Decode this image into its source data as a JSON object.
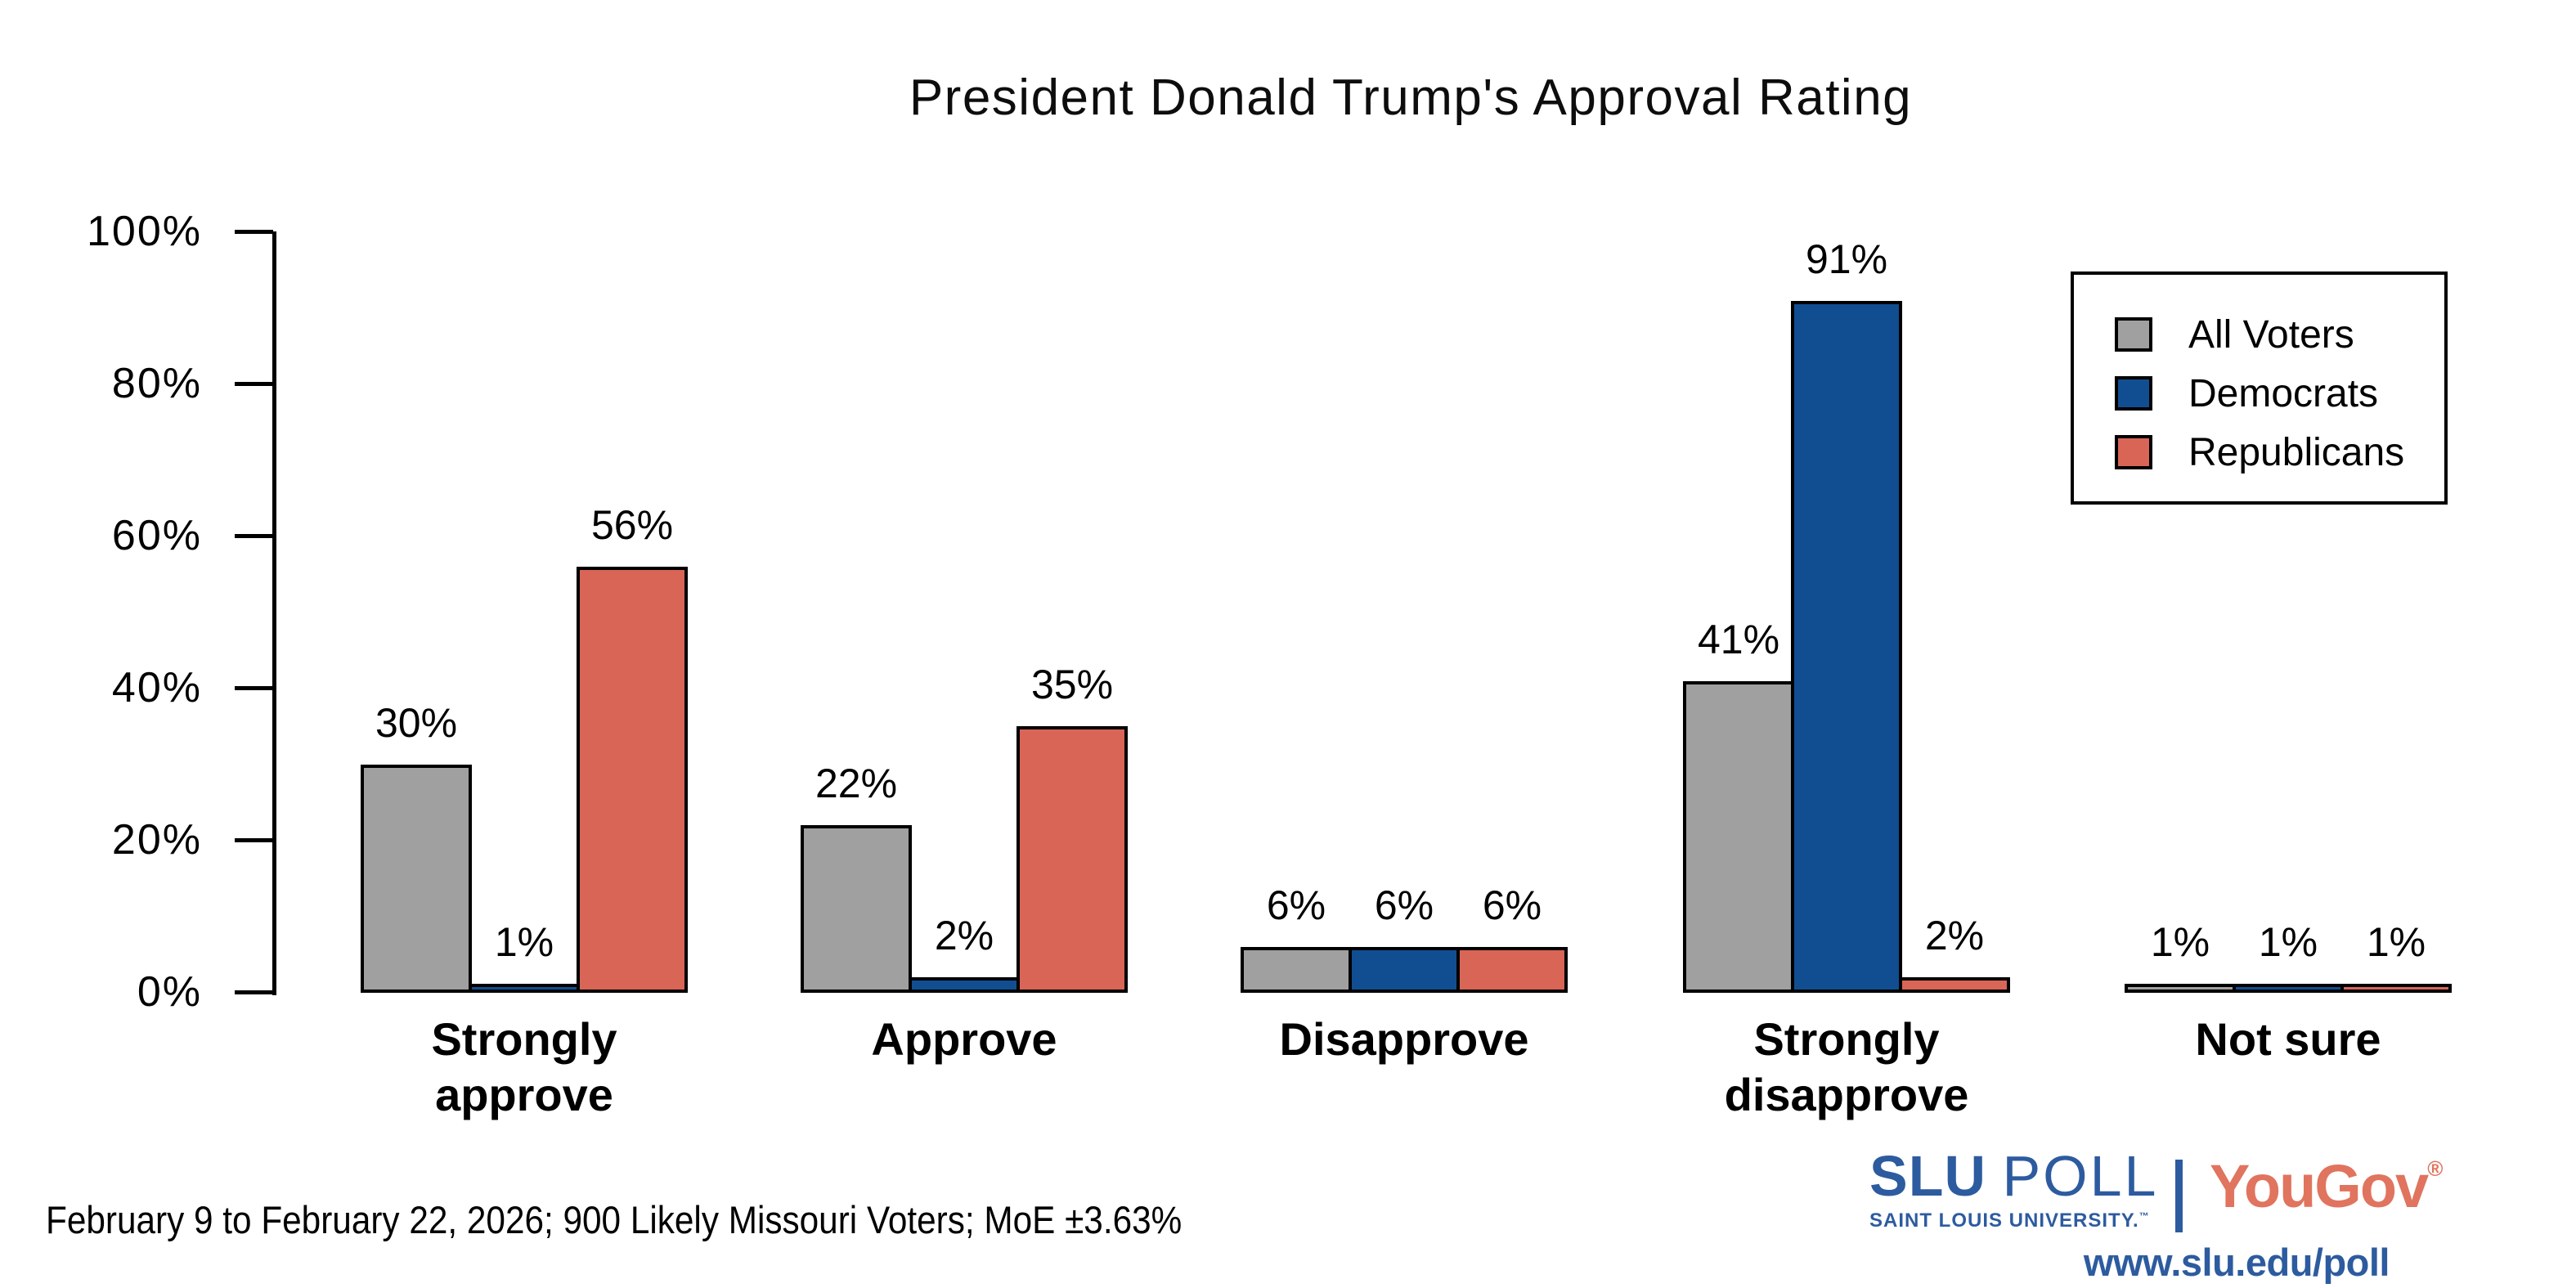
{
  "title": "President Donald Trump's Approval Rating",
  "footnote": "February 9 to February 22, 2026; 900 Likely Missouri Voters; MoE ±3.63%",
  "chart_data": {
    "type": "bar",
    "title": "President Donald Trump's Approval Rating",
    "categories": [
      "Strongly approve",
      "Approve",
      "Disapprove",
      "Strongly disapprove",
      "Not sure"
    ],
    "category_label_lines": [
      [
        "Strongly",
        "approve"
      ],
      [
        "Approve"
      ],
      [
        "Disapprove"
      ],
      [
        "Strongly",
        "disapprove"
      ],
      [
        "Not sure"
      ]
    ],
    "series": [
      {
        "name": "All Voters",
        "color": "#a0a0a0",
        "values": [
          30,
          22,
          6,
          41,
          1
        ]
      },
      {
        "name": "Democrats",
        "color": "#114e91",
        "values": [
          1,
          2,
          6,
          91,
          1
        ]
      },
      {
        "name": "Republicans",
        "color": "#d96557",
        "values": [
          56,
          35,
          6,
          2,
          1
        ]
      }
    ],
    "value_suffix": "%",
    "ylim": [
      0,
      100
    ],
    "ytick_interval": 20,
    "ytick_labels": [
      "0%",
      "20%",
      "40%",
      "60%",
      "80%",
      "100%"
    ],
    "grid": false,
    "bar_outline_color": "#000000",
    "legend_position": "top-right"
  },
  "legend": {
    "items": [
      {
        "label": "All Voters"
      },
      {
        "label": "Democrats"
      },
      {
        "label": "Republicans"
      }
    ]
  },
  "branding": {
    "slu_name": "SLU",
    "poll_name": "POLL",
    "slu_subtitle": "SAINT LOUIS UNIVERSITY.",
    "slu_trademark": "™",
    "partner_name": "YouGov",
    "partner_registered": "®",
    "url": "www.slu.edu/poll",
    "slu_blue": "#2d5b9f",
    "yougov_red": "#e0745e"
  }
}
